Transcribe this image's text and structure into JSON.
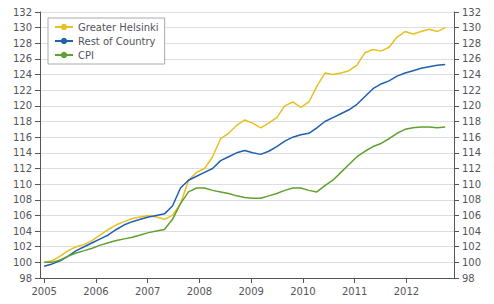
{
  "chart_data": {
    "type": "line",
    "x": [
      2005,
      2005.155,
      2005.31,
      2005.465,
      2005.62,
      2005.775,
      2005.93,
      2006.085,
      2006.24,
      2006.395,
      2006.55,
      2006.705,
      2006.86,
      2007.015,
      2007.17,
      2007.325,
      2007.48,
      2007.635,
      2007.79,
      2007.945,
      2008.1,
      2008.255,
      2008.41,
      2008.565,
      2008.72,
      2008.875,
      2009.03,
      2009.185,
      2009.34,
      2009.495,
      2009.65,
      2009.805,
      2009.96,
      2010.115,
      2010.27,
      2010.425,
      2010.58,
      2010.735,
      2010.89,
      2011.045,
      2011.2,
      2011.355,
      2011.51,
      2011.665,
      2011.82,
      2011.975,
      2012.13,
      2012.285,
      2012.44,
      2012.595,
      2012.75
    ],
    "series": [
      {
        "name": "Greater Helsinki",
        "color": "#e8c020",
        "values": [
          100.0,
          100.2,
          100.8,
          101.5,
          102.0,
          102.3,
          102.8,
          103.5,
          104.2,
          104.8,
          105.2,
          105.6,
          105.8,
          106.0,
          105.8,
          105.5,
          106.0,
          107.5,
          110.5,
          111.5,
          112.0,
          113.5,
          115.8,
          116.5,
          117.5,
          118.2,
          117.8,
          117.2,
          117.8,
          118.5,
          120.0,
          120.5,
          119.8,
          120.5,
          122.5,
          124.2,
          124.0,
          124.2,
          124.5,
          125.2,
          126.8,
          127.2,
          127.0,
          127.5,
          128.8,
          129.5,
          129.2,
          129.5,
          129.8,
          129.5,
          130.0
        ]
      },
      {
        "name": "Rest of Country",
        "color": "#2060b0",
        "values": [
          99.5,
          99.8,
          100.2,
          100.8,
          101.5,
          102.0,
          102.5,
          103.0,
          103.5,
          104.2,
          104.8,
          105.2,
          105.5,
          105.8,
          106.0,
          106.2,
          107.2,
          109.5,
          110.5,
          111.0,
          111.5,
          112.0,
          113.0,
          113.5,
          114.0,
          114.3,
          114.0,
          113.8,
          114.2,
          114.8,
          115.5,
          116.0,
          116.3,
          116.5,
          117.2,
          118.0,
          118.5,
          119.0,
          119.5,
          120.2,
          121.2,
          122.2,
          122.8,
          123.2,
          123.8,
          124.2,
          124.5,
          124.8,
          125.0,
          125.2,
          125.3
        ]
      },
      {
        "name": "CPI",
        "color": "#60a030",
        "values": [
          100.0,
          100.0,
          100.3,
          100.8,
          101.2,
          101.5,
          101.8,
          102.2,
          102.5,
          102.8,
          103.0,
          103.2,
          103.5,
          103.8,
          104.0,
          104.2,
          105.5,
          107.5,
          109.0,
          109.5,
          109.5,
          109.2,
          109.0,
          108.8,
          108.5,
          108.3,
          108.2,
          108.2,
          108.5,
          108.8,
          109.2,
          109.5,
          109.5,
          109.2,
          109.0,
          109.8,
          110.5,
          111.5,
          112.5,
          113.5,
          114.2,
          114.8,
          115.2,
          115.8,
          116.5,
          117.0,
          117.2,
          117.3,
          117.3,
          117.2,
          117.3
        ]
      }
    ],
    "xlim": [
      2004.92,
      2012.92
    ],
    "xticks": [
      2005,
      2006,
      2007,
      2008,
      2009,
      2010,
      2011,
      2012
    ],
    "ylim": [
      98,
      132
    ],
    "yticks": [
      98,
      100,
      102,
      104,
      106,
      108,
      110,
      112,
      114,
      116,
      118,
      120,
      122,
      124,
      126,
      128,
      130,
      132
    ],
    "y2lim": [
      98,
      132
    ],
    "y2ticks": [
      98,
      100,
      102,
      104,
      106,
      108,
      110,
      112,
      114,
      116,
      118,
      120,
      122,
      124,
      126,
      128,
      130,
      132
    ],
    "grid": true,
    "legend": "upper left"
  }
}
